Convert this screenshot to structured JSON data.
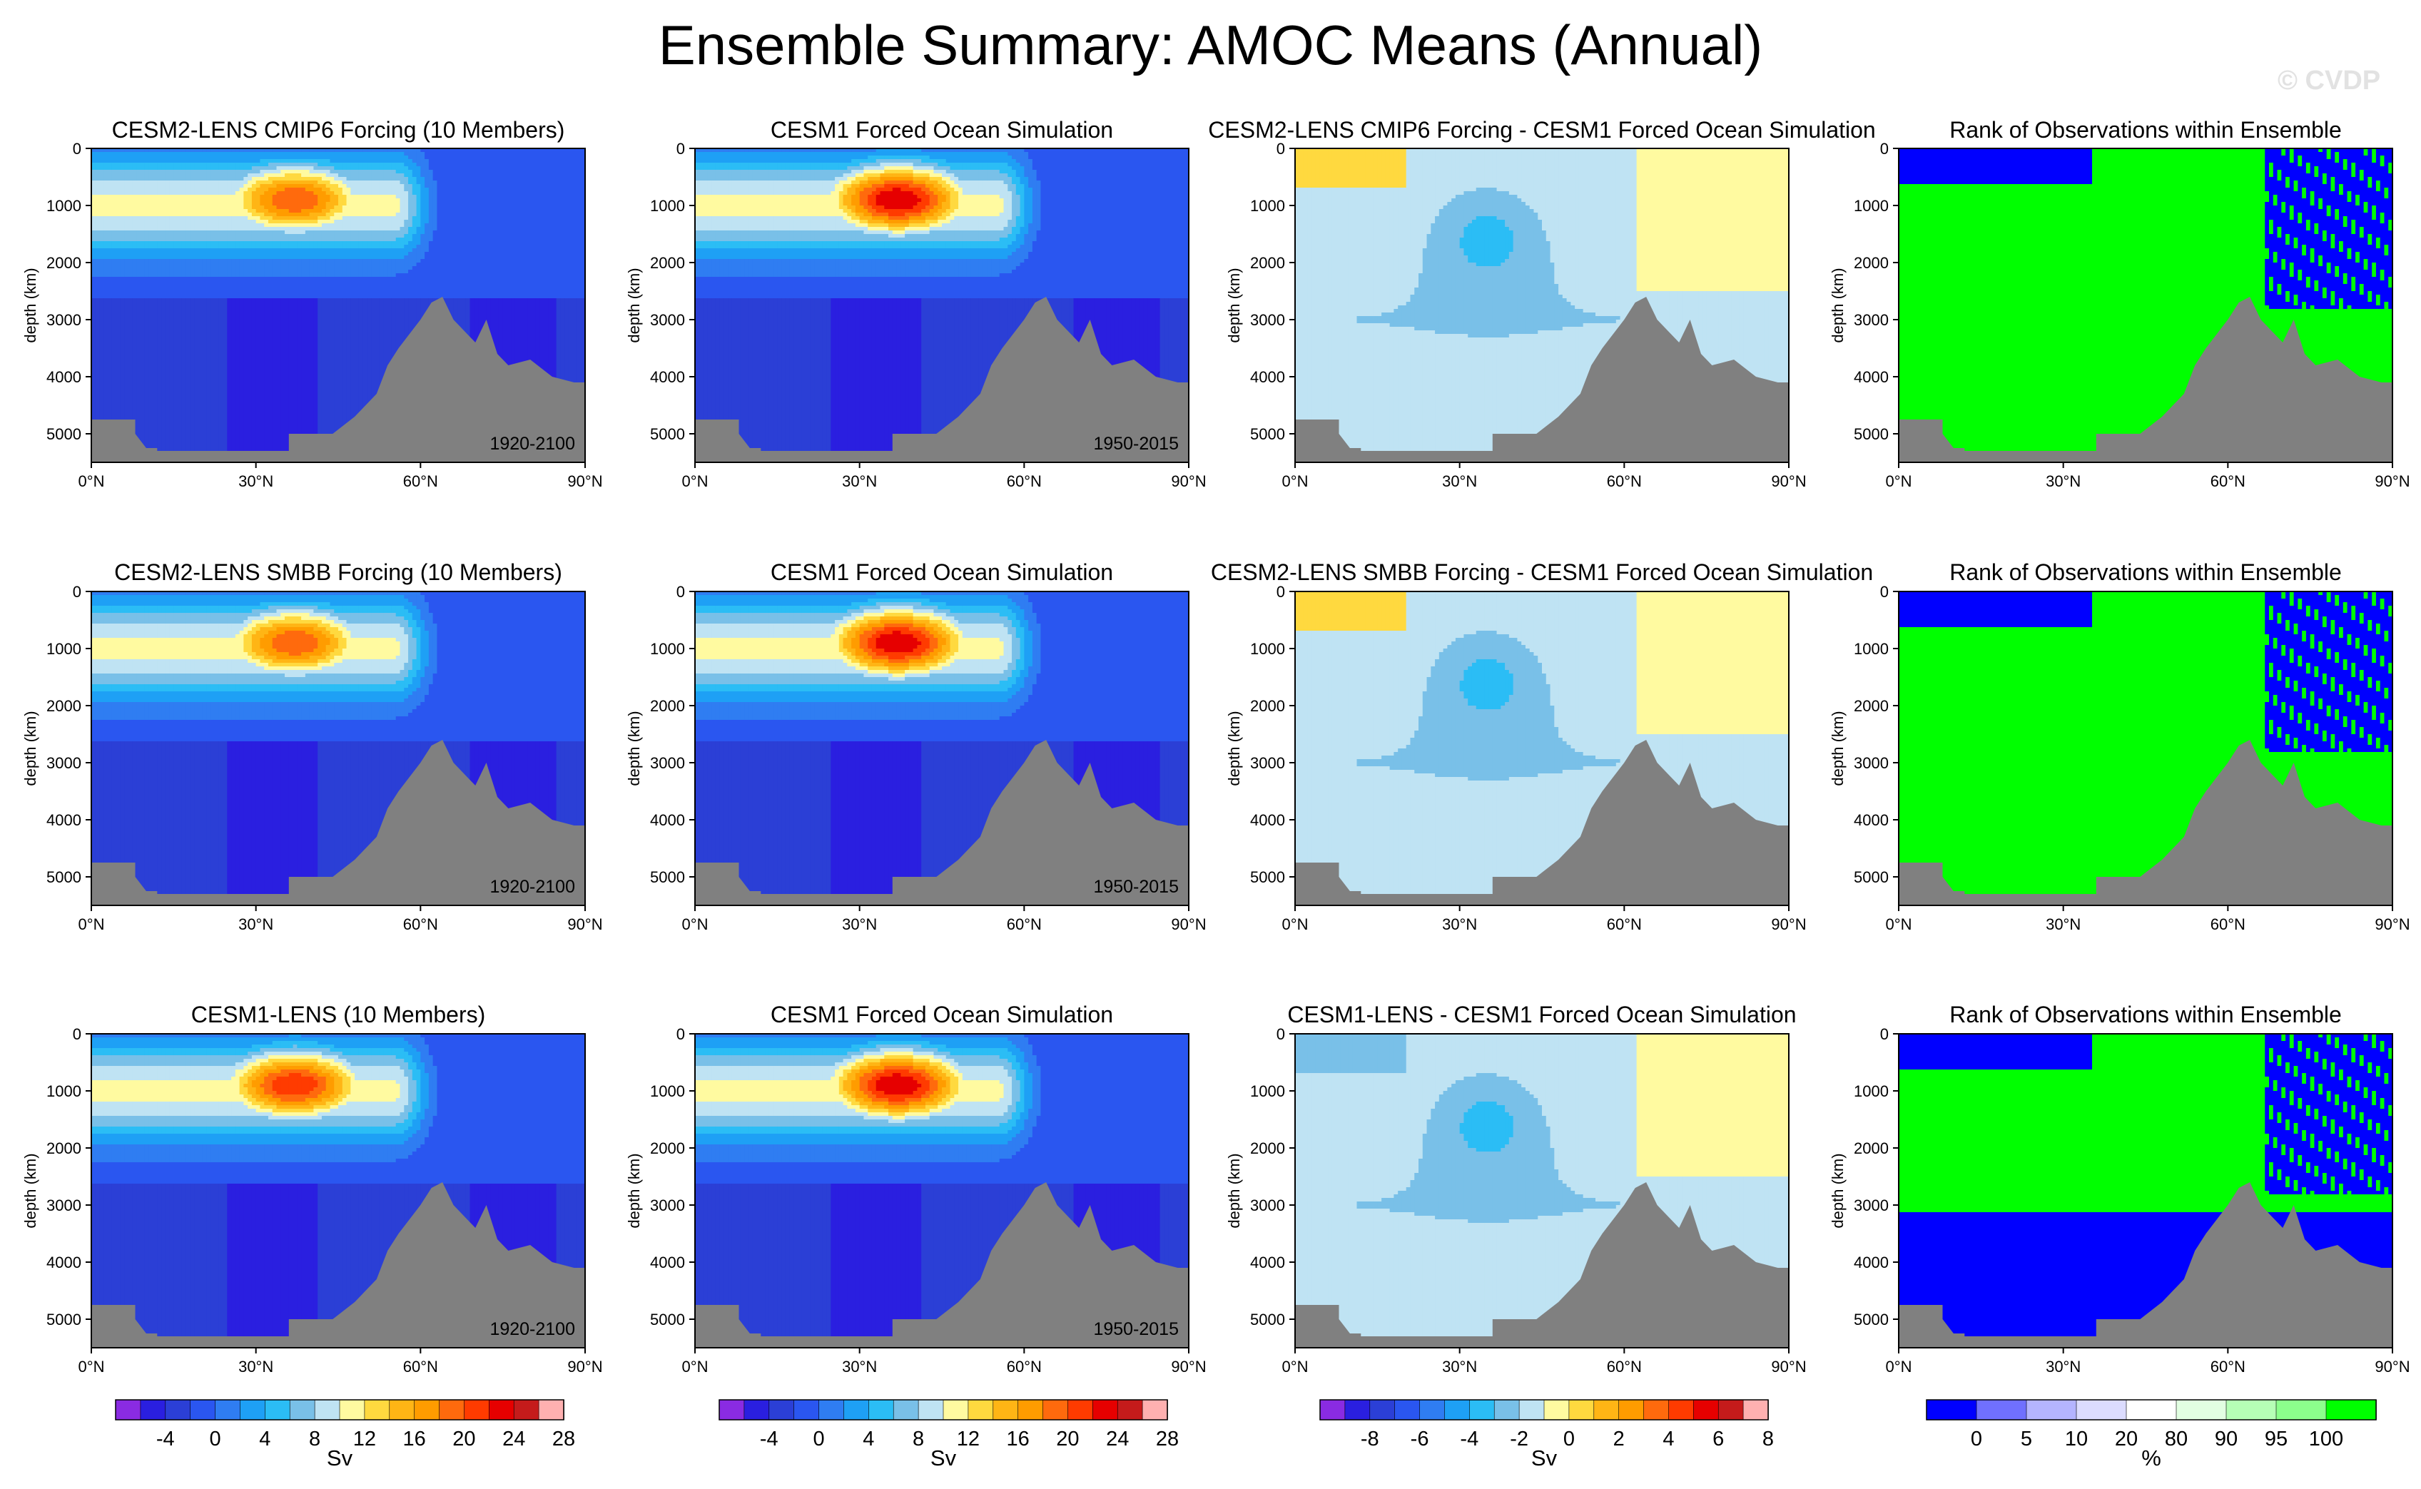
{
  "figure": {
    "title": "Ensemble Summary: AMOC Means (Annual)",
    "watermark": "© CVDP"
  },
  "colors": {
    "land": "#808080",
    "sv": [
      "#8a2be2",
      "#2a1fe0",
      "#2b3fd6",
      "#2a56f0",
      "#2f7df2",
      "#1ea0f5",
      "#2bbdf5",
      "#79c0e8",
      "#bfe3f3",
      "#fffaa0",
      "#ffd93f",
      "#ffb515",
      "#ff9c00",
      "#ff6a0d",
      "#ff3b00",
      "#e60000",
      "#c51b1b",
      "#ffb0b0"
    ],
    "diff": [
      "#8a2be2",
      "#2a1fe0",
      "#2b3fd6",
      "#2a56f0",
      "#2f7df2",
      "#1ea0f5",
      "#2bbdf5",
      "#79c0e8",
      "#bfe3f3",
      "#fffaa0",
      "#ffd93f",
      "#ffb515",
      "#ff9c00",
      "#ff6a0d",
      "#ff3b00",
      "#e60000",
      "#c51b1b",
      "#ffb0b0"
    ],
    "rank": [
      "#0000ff",
      "#7070ff",
      "#b4b4ff",
      "#dcdcff",
      "#ffffff",
      "#e2ffe2",
      "#b6ffb6",
      "#8cff8c",
      "#00ff00"
    ]
  },
  "colorbars": [
    {
      "labels": [
        "-4",
        "0",
        "4",
        "8",
        "12",
        "16",
        "20",
        "24",
        "28"
      ],
      "unit": "Sv"
    },
    {
      "labels": [
        "-4",
        "0",
        "4",
        "8",
        "12",
        "16",
        "20",
        "24",
        "28"
      ],
      "unit": "Sv"
    },
    {
      "labels": [
        "-8",
        "-6",
        "-4",
        "-2",
        "0",
        "2",
        "4",
        "6",
        "8"
      ],
      "unit": "Sv"
    },
    {
      "labels": [
        "0",
        "5",
        "10",
        "20",
        "80",
        "90",
        "95",
        "100"
      ],
      "unit": "%"
    }
  ],
  "axes": {
    "ylabel": "depth (km)",
    "yticks": [
      "0",
      "1000",
      "2000",
      "3000",
      "4000",
      "5000"
    ],
    "xticks": [
      "0°N",
      "30°N",
      "60°N",
      "90°N"
    ]
  },
  "chart_data": [
    {
      "type": "heatmap",
      "variable": "AMOC",
      "units": "Sv",
      "title": "CESM2-LENS CMIP6 Forcing (10 Members)",
      "period": "1920-2100",
      "xlabel": "",
      "ylabel": "depth (km)",
      "xlim": [
        0,
        90
      ],
      "ylim": [
        5500,
        0
      ],
      "max_overturning_sv": 22,
      "max_location": {
        "lat": 37,
        "depth": 900
      }
    },
    {
      "type": "heatmap",
      "variable": "AMOC",
      "units": "Sv",
      "title": "CESM1 Forced Ocean Simulation",
      "period": "1950-2015",
      "xlabel": "",
      "ylabel": "depth (km)",
      "xlim": [
        0,
        90
      ],
      "ylim": [
        5500,
        0
      ],
      "max_overturning_sv": 26,
      "max_location": {
        "lat": 38,
        "depth": 950
      }
    },
    {
      "type": "heatmap",
      "variable": "AMOC difference",
      "units": "Sv",
      "title": "CESM2-LENS CMIP6 Forcing - CESM1 Forced Ocean Simulation",
      "xlabel": "",
      "ylabel": "depth (km)",
      "xlim": [
        0,
        90
      ],
      "ylim": [
        5500,
        0
      ]
    },
    {
      "type": "heatmap",
      "variable": "Rank",
      "units": "%",
      "title": "Rank of Observations within Ensemble",
      "xlabel": "",
      "ylabel": "depth (km)",
      "xlim": [
        0,
        90
      ],
      "ylim": [
        5500,
        0
      ]
    },
    {
      "type": "heatmap",
      "variable": "AMOC",
      "units": "Sv",
      "title": "CESM2-LENS SMBB Forcing (10 Members)",
      "period": "1920-2100",
      "xlabel": "",
      "ylabel": "depth (km)",
      "xlim": [
        0,
        90
      ],
      "ylim": [
        5500,
        0
      ],
      "max_overturning_sv": 22,
      "max_location": {
        "lat": 37,
        "depth": 900
      }
    },
    {
      "type": "heatmap",
      "variable": "AMOC",
      "units": "Sv",
      "title": "CESM1 Forced Ocean Simulation",
      "period": "1950-2015",
      "xlabel": "",
      "ylabel": "depth (km)",
      "xlim": [
        0,
        90
      ],
      "ylim": [
        5500,
        0
      ],
      "max_overturning_sv": 26,
      "max_location": {
        "lat": 38,
        "depth": 950
      }
    },
    {
      "type": "heatmap",
      "variable": "AMOC difference",
      "units": "Sv",
      "title": "CESM2-LENS SMBB Forcing - CESM1 Forced Ocean Simulation",
      "xlabel": "",
      "ylabel": "depth (km)",
      "xlim": [
        0,
        90
      ],
      "ylim": [
        5500,
        0
      ]
    },
    {
      "type": "heatmap",
      "variable": "Rank",
      "units": "%",
      "title": "Rank of Observations within Ensemble",
      "xlabel": "",
      "ylabel": "depth (km)",
      "xlim": [
        0,
        90
      ],
      "ylim": [
        5500,
        0
      ]
    },
    {
      "type": "heatmap",
      "variable": "AMOC",
      "units": "Sv",
      "title": "CESM1-LENS (10 Members)",
      "period": "1920-2100",
      "xlabel": "",
      "ylabel": "depth (km)",
      "xlim": [
        0,
        90
      ],
      "ylim": [
        5500,
        0
      ],
      "max_overturning_sv": 24,
      "max_location": {
        "lat": 37,
        "depth": 950
      }
    },
    {
      "type": "heatmap",
      "variable": "AMOC",
      "units": "Sv",
      "title": "CESM1 Forced Ocean Simulation",
      "period": "1950-2015",
      "xlabel": "",
      "ylabel": "depth (km)",
      "xlim": [
        0,
        90
      ],
      "ylim": [
        5500,
        0
      ],
      "max_overturning_sv": 26,
      "max_location": {
        "lat": 38,
        "depth": 950
      }
    },
    {
      "type": "heatmap",
      "variable": "AMOC difference",
      "units": "Sv",
      "title": "CESM1-LENS - CESM1 Forced Ocean Simulation",
      "xlabel": "",
      "ylabel": "depth (km)",
      "xlim": [
        0,
        90
      ],
      "ylim": [
        5500,
        0
      ]
    },
    {
      "type": "heatmap",
      "variable": "Rank",
      "units": "%",
      "title": "Rank of Observations within Ensemble",
      "xlabel": "",
      "ylabel": "depth (km)",
      "xlim": [
        0,
        90
      ],
      "ylim": [
        5500,
        0
      ]
    }
  ]
}
